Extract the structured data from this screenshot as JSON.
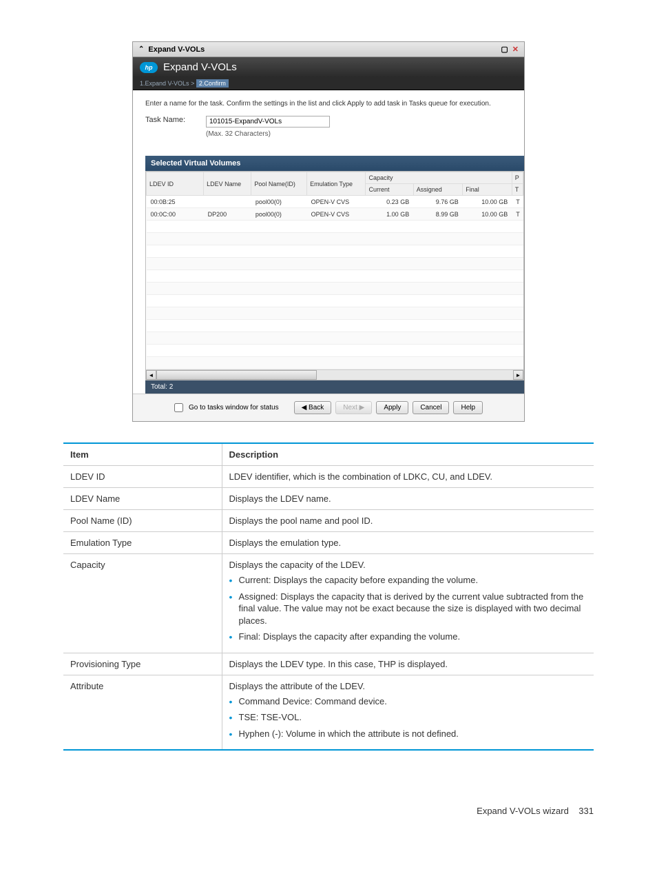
{
  "dialog": {
    "titlebar": "Expand V-VOLs",
    "header": "Expand V-VOLs",
    "logo_text": "hp",
    "breadcrumb": {
      "step1": "1.Expand V-VOLs",
      "sep": ">",
      "step2": "2.Confirm"
    },
    "instruction": "Enter a name for the task. Confirm the settings in the list and click Apply to add task in Tasks queue for execution.",
    "task_label": "Task Name:",
    "task_value": "101015-ExpandV-VOLs",
    "task_hint": "(Max. 32 Characters)",
    "section_title": "Selected Virtual Volumes",
    "columns": {
      "ldev_id": "LDEV ID",
      "ldev_name": "LDEV Name",
      "pool": "Pool Name(ID)",
      "emulation": "Emulation Type",
      "capacity": "Capacity",
      "current": "Current",
      "assigned": "Assigned",
      "final": "Final",
      "pt1": "P",
      "pt2": "T"
    },
    "rows": [
      {
        "ldev_id": "00:0B:25",
        "ldev_name": "",
        "pool": "pool00(0)",
        "emulation": "OPEN-V CVS",
        "current": "0.23 GB",
        "assigned": "9.76 GB",
        "final": "10.00 GB",
        "pt": "T"
      },
      {
        "ldev_id": "00:0C:00",
        "ldev_name": "DP200",
        "pool": "pool00(0)",
        "emulation": "OPEN-V CVS",
        "current": "1.00 GB",
        "assigned": "8.99 GB",
        "final": "10.00 GB",
        "pt": "T"
      }
    ],
    "total_label": "Total:",
    "total_count": "2",
    "footer": {
      "checkbox_label": "Go to tasks window for status",
      "back": "◀ Back",
      "next": "Next ▶",
      "apply": "Apply",
      "cancel": "Cancel",
      "help": "Help"
    }
  },
  "desc": {
    "header_item": "Item",
    "header_desc": "Description",
    "rows": [
      {
        "item": "LDEV ID",
        "text": "LDEV identifier, which is the combination of LDKC, CU, and LDEV."
      },
      {
        "item": "LDEV Name",
        "text": "Displays the LDEV name."
      },
      {
        "item": "Pool Name (ID)",
        "text": "Displays the pool name and pool ID."
      },
      {
        "item": "Emulation Type",
        "text": "Displays the emulation type."
      },
      {
        "item": "Capacity",
        "text": "Displays the capacity of the LDEV.",
        "bullets": [
          "Current: Displays the capacity before expanding the volume.",
          "Assigned: Displays the capacity that is derived by the current value subtracted from the final value. The value may not be exact because the size is displayed with two decimal places.",
          "Final: Displays the capacity after expanding the volume."
        ]
      },
      {
        "item": "Provisioning Type",
        "text": "Displays the LDEV type. In this case, THP is displayed."
      },
      {
        "item": "Attribute",
        "text": "Displays the attribute of the LDEV.",
        "bullets": [
          "Command Device: Command device.",
          "TSE: TSE-VOL.",
          "Hyphen (-): Volume in which the attribute is not defined."
        ]
      }
    ]
  },
  "page_footer": {
    "label": "Expand V-VOLs wizard",
    "page": "331"
  }
}
